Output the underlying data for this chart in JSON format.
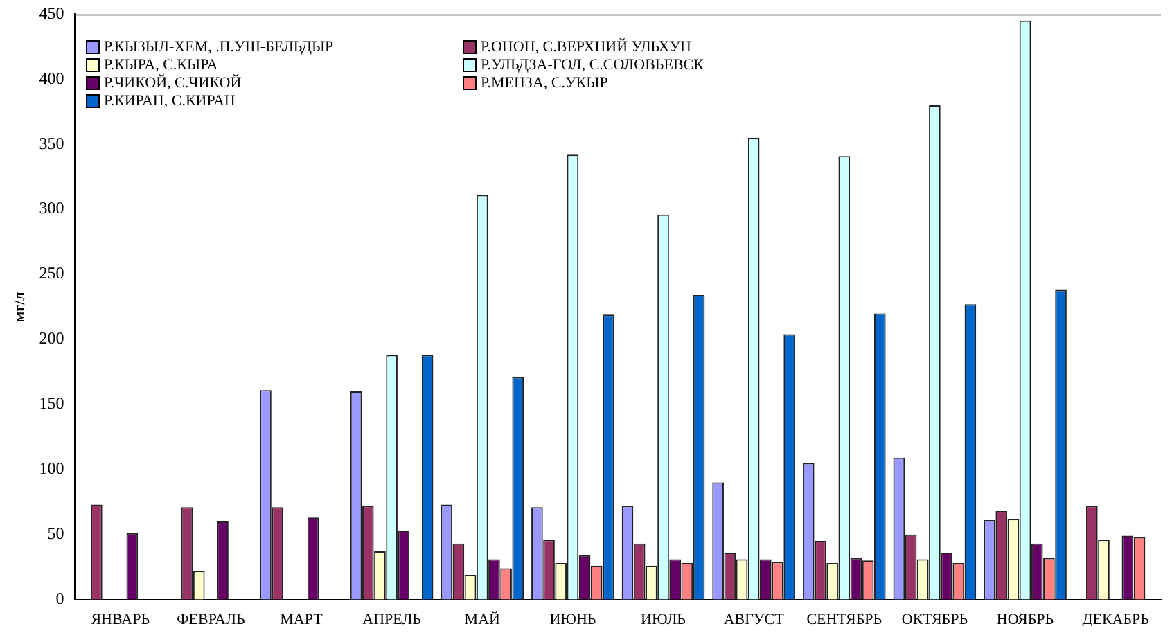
{
  "chart_data": {
    "type": "bar",
    "ylabel": "мг/л",
    "categories": [
      "ЯНВАРЬ",
      "ФЕВРАЛЬ",
      "МАРТ",
      "АПРЕЛЬ",
      "МАЙ",
      "ИЮНЬ",
      "ИЮЛЬ",
      "АВГУСТ",
      "СЕНТЯБРЬ",
      "ОКТЯБРЬ",
      "НОЯБРЬ",
      "ДЕКАБРЬ"
    ],
    "series": [
      {
        "name": "Р.КЫЗЫЛ-ХЕМ, .П.УШ-БЕЛЬДЫР",
        "color": "#9999ff",
        "values": [
          null,
          null,
          161,
          160,
          73,
          71,
          72,
          90,
          105,
          109,
          61,
          null
        ]
      },
      {
        "name": "Р.ОНОН,  С.ВЕРХНИЙ УЛЬХУН",
        "color": "#993366",
        "values": [
          73,
          71,
          71,
          72,
          43,
          46,
          43,
          36,
          45,
          50,
          68,
          72
        ]
      },
      {
        "name": "Р.КЫРА, С.КЫРА",
        "color": "#ffffcc",
        "values": [
          null,
          22,
          null,
          37,
          19,
          28,
          26,
          31,
          28,
          31,
          62,
          46
        ]
      },
      {
        "name": "Р.УЛЬДЗА-ГОЛ,  С.СОЛОВЬЕВСК",
        "color": "#ccffff",
        "values": [
          null,
          null,
          null,
          188,
          311,
          342,
          296,
          355,
          341,
          380,
          445,
          null
        ]
      },
      {
        "name": "Р.ЧИКОЙ, С.ЧИКОЙ",
        "color": "#660066",
        "values": [
          51,
          60,
          63,
          53,
          31,
          34,
          31,
          31,
          32,
          36,
          43,
          49
        ]
      },
      {
        "name": "Р.МЕНЗА,  С.УКЫР",
        "color": "#ff8080",
        "values": [
          null,
          null,
          null,
          null,
          24,
          26,
          28,
          29,
          30,
          28,
          32,
          48
        ]
      },
      {
        "name": "Р.КИРАН, С.КИРАН",
        "color": "#0066cc",
        "values": [
          null,
          null,
          null,
          188,
          171,
          219,
          234,
          204,
          220,
          227,
          238,
          null
        ]
      }
    ],
    "ylim": [
      0,
      450
    ],
    "yticks": [
      0,
      50,
      100,
      150,
      200,
      250,
      300,
      350,
      400,
      450
    ],
    "grid": false,
    "legend": "top"
  }
}
